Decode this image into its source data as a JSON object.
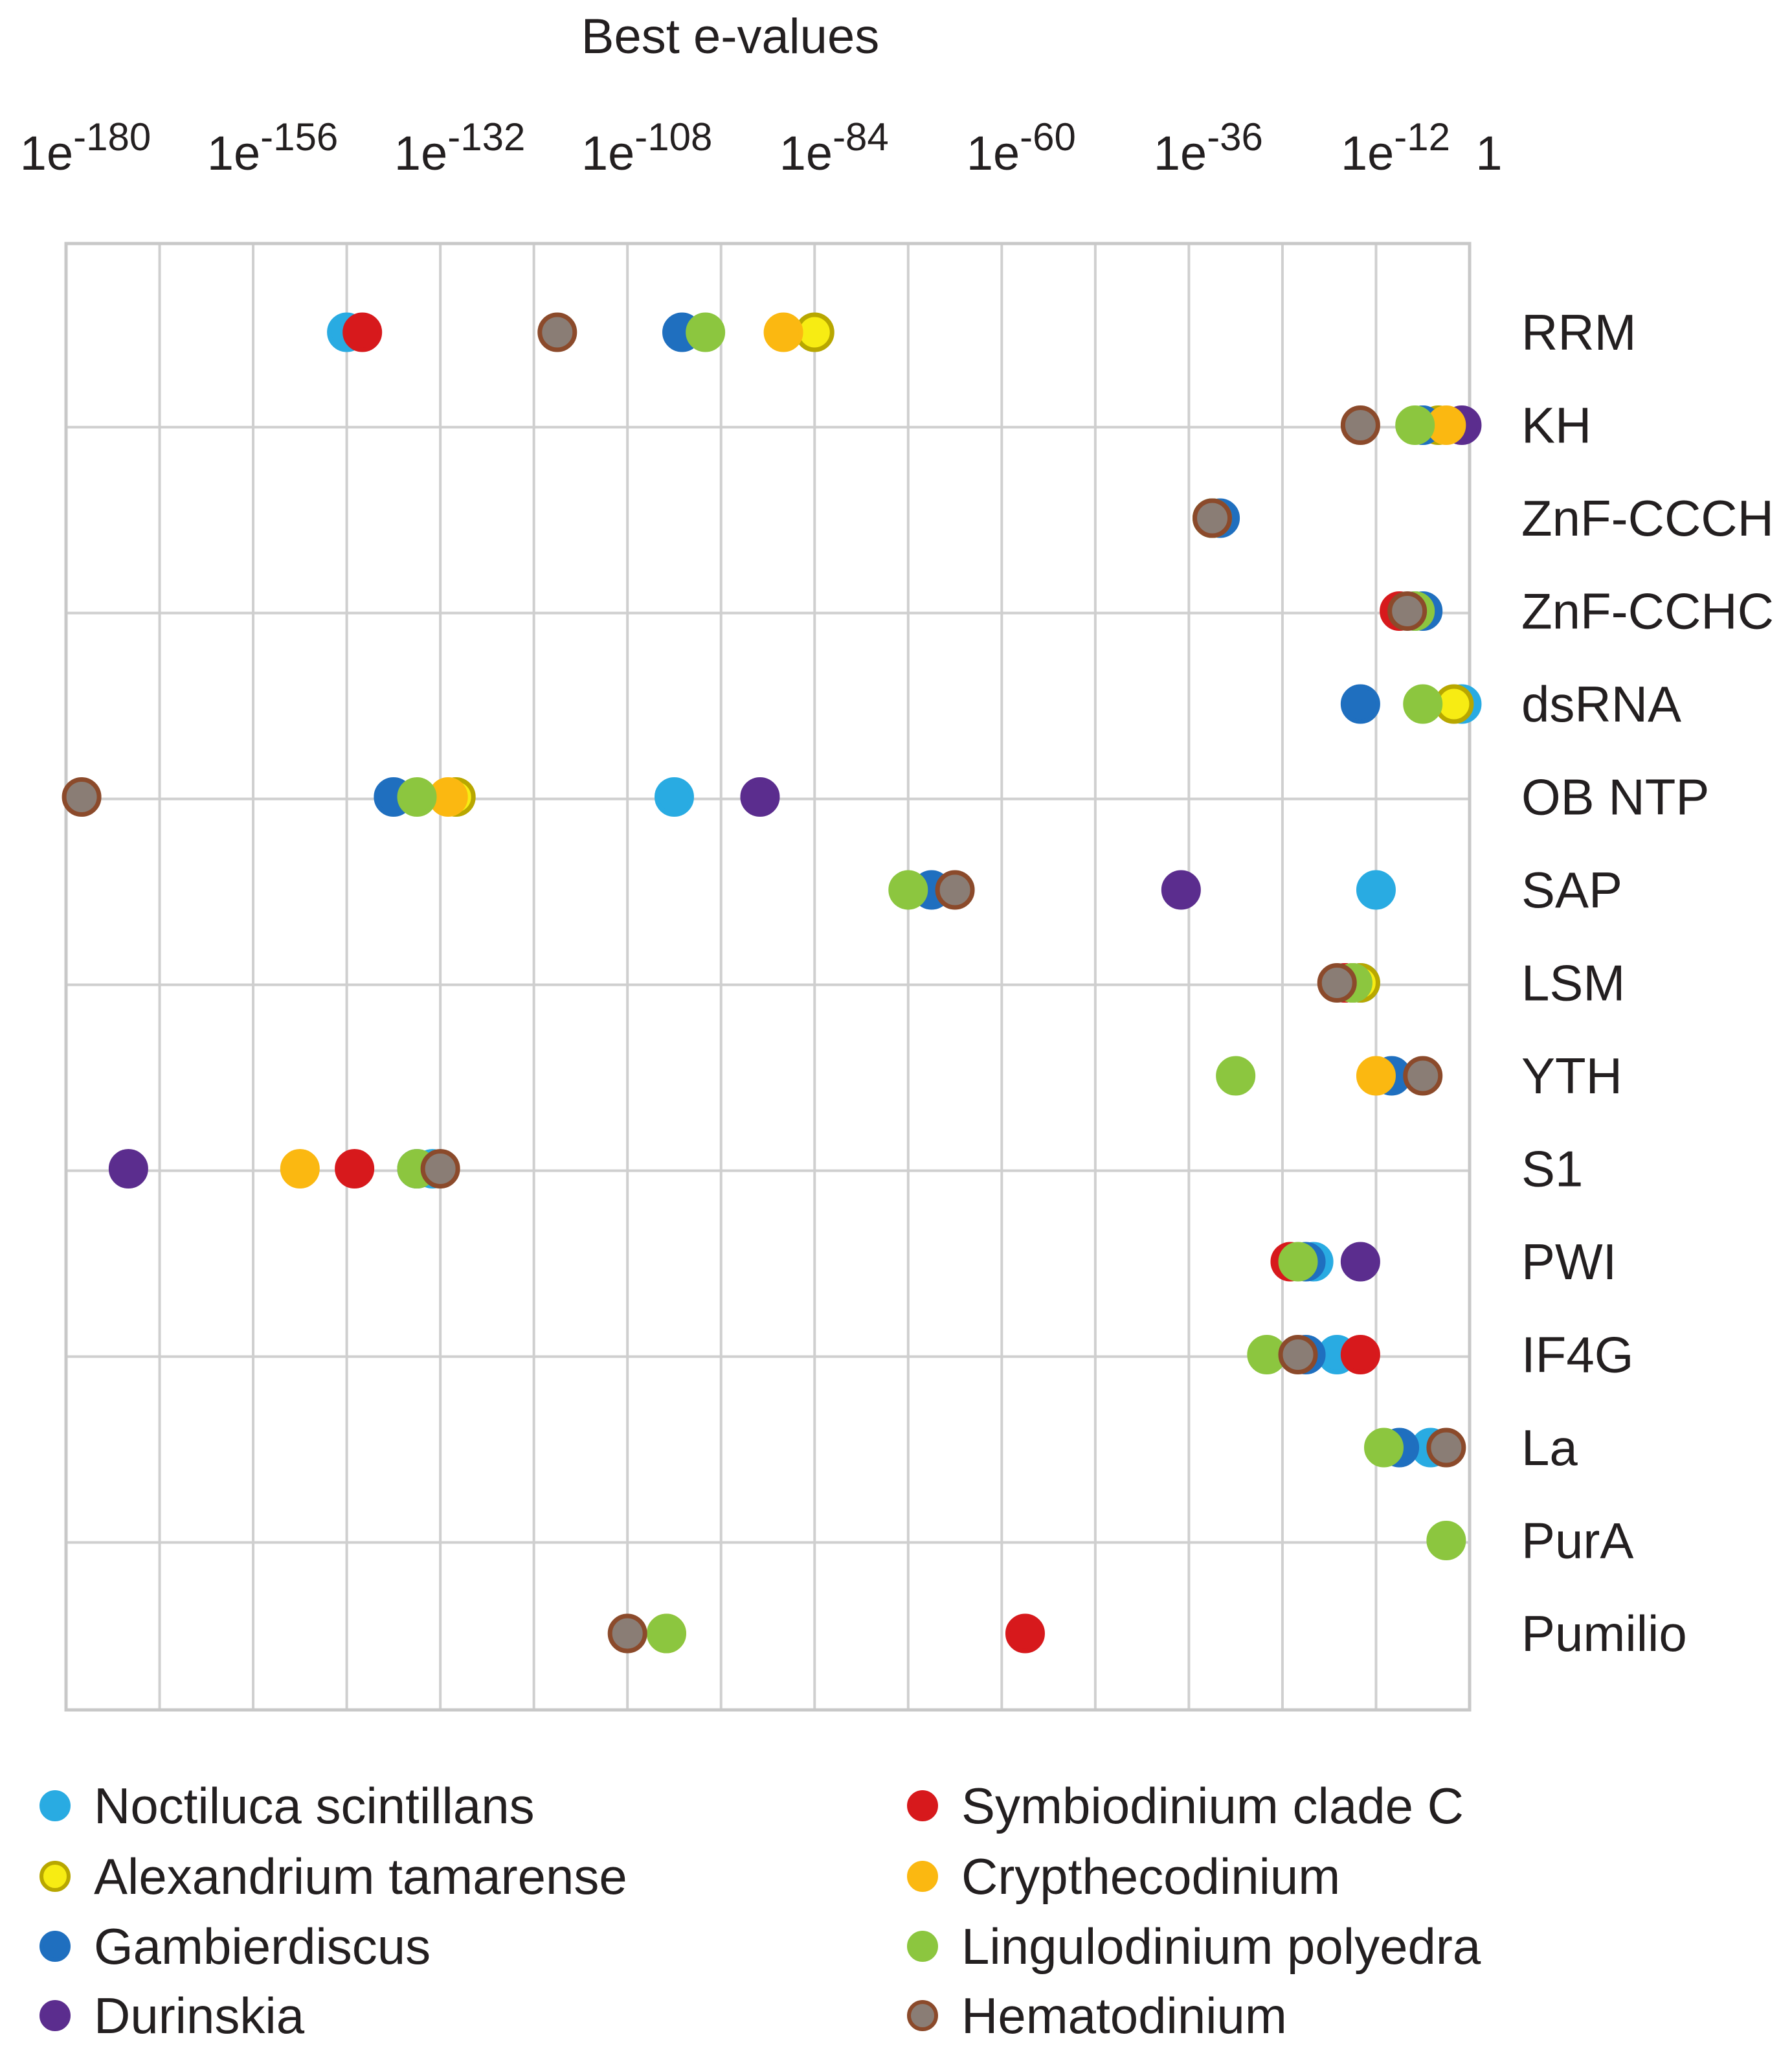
{
  "chart_data": {
    "type": "scatter",
    "title": "Best e-values",
    "x_scale": "log10",
    "xlim_log10": [
      -180,
      0
    ],
    "x_ticks": [
      {
        "base": "1e",
        "exp": "-180",
        "log10": -180
      },
      {
        "base": "1e",
        "exp": "-156",
        "log10": -156
      },
      {
        "base": "1e",
        "exp": "-132",
        "log10": -132
      },
      {
        "base": "1e",
        "exp": "-108",
        "log10": -108
      },
      {
        "base": "1e",
        "exp": "-84",
        "log10": -84
      },
      {
        "base": "1e",
        "exp": "-60",
        "log10": -60
      },
      {
        "base": "1e",
        "exp": "-36",
        "log10": -36
      },
      {
        "base": "1e",
        "exp": "-12",
        "log10": -12
      },
      {
        "base": "1",
        "exp": "",
        "log10": 0
      }
    ],
    "categories": [
      "RRM",
      "KH",
      "ZnF-CCCH",
      "ZnF-CCHC",
      "dsRNA",
      "OB NTP",
      "SAP",
      "LSM",
      "YTH",
      "S1",
      "PWI",
      "IF4G",
      "La",
      "PurA",
      "Pumilio"
    ],
    "grid": true,
    "legend_position": "bottom",
    "series": [
      {
        "name": "Noctiluca scintillans",
        "color": "#29abe2",
        "edge": "#29abe2",
        "values": {
          "RRM": -144,
          "KH": -6,
          "ZnF-CCCH": -33,
          "ZnF-CCHC": -7,
          "dsRNA": -1,
          "OB NTP": -102,
          "SAP": -12,
          "LSM": -14,
          "S1": -133,
          "PWI": -20,
          "IF4G": -17,
          "La": -5
        }
      },
      {
        "name": "Alexandrium tamarense",
        "color": "#f7ec13",
        "edge": "#b8a700",
        "values": {
          "RRM": -84,
          "KH": -4,
          "ZnF-CCCH": -33,
          "dsRNA": -2,
          "OB NTP": -130,
          "LSM": -14
        }
      },
      {
        "name": "Gambierdiscus",
        "color": "#1f6fbf",
        "edge": "#1f6fbf",
        "values": {
          "RRM": -101,
          "KH": -6,
          "ZnF-CCCH": -32,
          "ZnF-CCHC": -6,
          "dsRNA": -14,
          "OB NTP": -138,
          "SAP": -69,
          "LSM": -15,
          "YTH": -10,
          "S1": -135,
          "PWI": -21,
          "IF4G": -21,
          "La": -9
        }
      },
      {
        "name": "Durinskia",
        "color": "#5b2d8e",
        "edge": "#5b2d8e",
        "values": {
          "KH": -1,
          "OB NTP": -91,
          "SAP": -37,
          "LSM": -16,
          "S1": -172,
          "PWI": -14
        }
      },
      {
        "name": "Symbiodinium clade C",
        "color": "#d7191c",
        "edge": "#d7191c",
        "values": {
          "RRM": -142,
          "ZnF-CCHC": -9,
          "LSM": -16,
          "S1": -143,
          "PWI": -23,
          "IF4G": -14,
          "Pumilio": -57
        }
      },
      {
        "name": "Crypthecodinium",
        "color": "#fbb811",
        "edge": "#fbb811",
        "values": {
          "RRM": -88,
          "KH": -3,
          "OB NTP": -131,
          "LSM": -15,
          "YTH": -12,
          "S1": -150,
          "Pumilio": -103
        }
      },
      {
        "name": "Lingulodinium polyedra",
        "color": "#8cc63f",
        "edge": "#8cc63f",
        "values": {
          "RRM": -98,
          "KH": -7,
          "ZnF-CCCH": -33,
          "ZnF-CCHC": -7,
          "dsRNA": -6,
          "OB NTP": -135,
          "SAP": -72,
          "LSM": -15,
          "YTH": -30,
          "S1": -135,
          "PWI": -22,
          "IF4G": -26,
          "La": -11,
          "PurA": -3,
          "Pumilio": -103
        }
      },
      {
        "name": "Hematodinium",
        "color": "#8a7d75",
        "edge": "#8b4a2b",
        "values": {
          "RRM": -117,
          "KH": -14,
          "ZnF-CCCH": -33,
          "ZnF-CCHC": -8,
          "OB NTP": -178,
          "SAP": -66,
          "LSM": -17,
          "YTH": -6,
          "S1": -132,
          "IF4G": -22,
          "La": -3,
          "Pumilio": -108
        }
      }
    ]
  }
}
